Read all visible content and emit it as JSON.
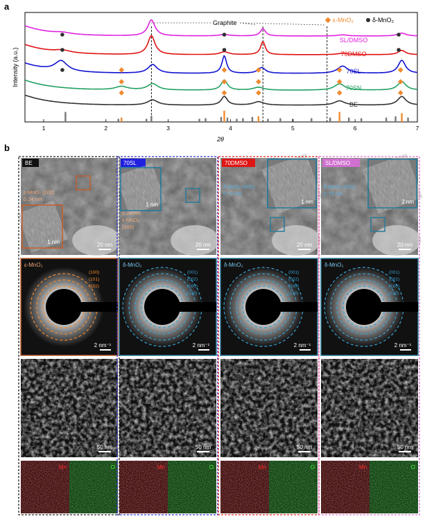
{
  "panel_a": {
    "label": "a",
    "legend": {
      "eps": "ε-MnO₂",
      "delta": "δ-MnO₂"
    },
    "graphite_label": "Graphite",
    "colors": {
      "SL_DMSO": "#e020e0",
      "70DMSO": "#e01010",
      "70SL": "#1010d0",
      "70SN": "#20a060",
      "BE": "#303030",
      "eps_marker": "#f08a30",
      "delta_marker": "#303030"
    }
  },
  "chart_data": {
    "type": "line",
    "xlabel": "2θ",
    "ylabel": "Intensity (a.u.)",
    "xlim": [
      0.7,
      7
    ],
    "x_ticks": [
      "1",
      "2",
      "3",
      "4",
      "5",
      "6",
      "7"
    ],
    "series": [
      {
        "name": "SL/DMSO",
        "offset": 4.0,
        "peaks": [
          [
            1.3,
            0.05,
            0.15
          ],
          [
            2.73,
            0.55,
            0.07
          ],
          [
            3.9,
            0.05,
            0.1
          ],
          [
            4.52,
            0.25,
            0.05
          ],
          [
            5.8,
            0.04,
            0.1
          ],
          [
            6.75,
            0.1,
            0.08
          ]
        ]
      },
      {
        "name": "70DMSO",
        "offset": 3.0,
        "peaks": [
          [
            1.3,
            0.08,
            0.15
          ],
          [
            2.73,
            0.65,
            0.07
          ],
          [
            3.9,
            0.1,
            0.08
          ],
          [
            4.52,
            0.45,
            0.045
          ],
          [
            5.8,
            0.05,
            0.1
          ],
          [
            6.75,
            0.15,
            0.07
          ]
        ]
      },
      {
        "name": "70SL",
        "offset": 2.0,
        "peaks": [
          [
            1.28,
            0.35,
            0.12
          ],
          [
            2.75,
            0.3,
            0.09
          ],
          [
            3.9,
            0.6,
            0.045
          ],
          [
            4.5,
            0.2,
            0.07
          ],
          [
            5.8,
            0.25,
            0.1
          ],
          [
            6.75,
            0.45,
            0.07
          ]
        ]
      },
      {
        "name": "70SN",
        "offset": 1.1,
        "peaks": [
          [
            2.25,
            0.12,
            0.12
          ],
          [
            2.75,
            0.22,
            0.1
          ],
          [
            3.9,
            0.35,
            0.06
          ],
          [
            4.45,
            0.1,
            0.1
          ],
          [
            5.75,
            0.22,
            0.1
          ],
          [
            6.75,
            0.3,
            0.08
          ]
        ]
      },
      {
        "name": "BE",
        "offset": 0.3,
        "peaks": [
          [
            2.75,
            0.18,
            0.1
          ],
          [
            3.9,
            0.3,
            0.06
          ],
          [
            4.45,
            0.12,
            0.1
          ],
          [
            5.75,
            0.15,
            0.1
          ],
          [
            6.75,
            0.3,
            0.08
          ]
        ]
      }
    ],
    "eps_markers": [
      [
        2.25,
        2
      ],
      [
        3.9,
        2
      ],
      [
        4.45,
        2
      ],
      [
        5.75,
        2
      ],
      [
        6.73,
        2
      ],
      [
        2.25,
        1
      ],
      [
        3.9,
        1
      ],
      [
        4.45,
        1
      ],
      [
        5.75,
        1
      ],
      [
        6.73,
        1
      ],
      [
        2.25,
        0
      ],
      [
        3.9,
        0
      ],
      [
        4.45,
        0
      ],
      [
        5.75,
        0
      ],
      [
        6.73,
        0
      ]
    ],
    "delta_markers": [
      [
        1.3,
        4
      ],
      [
        3.9,
        4
      ],
      [
        6.7,
        4
      ],
      [
        1.3,
        3
      ],
      [
        3.9,
        3
      ],
      [
        6.7,
        3
      ],
      [
        1.3,
        2
      ]
    ],
    "reference_ticks": [
      [
        1.35,
        0.8,
        "gray"
      ],
      [
        2.2,
        0.25,
        "gray"
      ],
      [
        2.25,
        0.35,
        "orange"
      ],
      [
        2.65,
        0.25,
        "gray"
      ],
      [
        2.73,
        0.5,
        "gray"
      ],
      [
        3.5,
        0.25,
        "gray"
      ],
      [
        3.6,
        0.3,
        "gray"
      ],
      [
        3.85,
        0.4,
        "gray"
      ],
      [
        3.9,
        0.9,
        "orange"
      ],
      [
        3.95,
        0.35,
        "gray"
      ],
      [
        4.1,
        0.25,
        "gray"
      ],
      [
        4.2,
        0.3,
        "gray"
      ],
      [
        4.35,
        0.4,
        "gray"
      ],
      [
        4.45,
        0.45,
        "orange"
      ],
      [
        4.6,
        0.25,
        "gray"
      ],
      [
        4.8,
        0.3,
        "gray"
      ],
      [
        5.0,
        0.25,
        "gray"
      ],
      [
        5.3,
        0.3,
        "gray"
      ],
      [
        5.6,
        0.35,
        "gray"
      ],
      [
        5.75,
        0.8,
        "orange"
      ],
      [
        5.9,
        0.35,
        "gray"
      ],
      [
        6.1,
        0.3,
        "gray"
      ],
      [
        6.5,
        0.35,
        "gray"
      ],
      [
        6.65,
        0.45,
        "gray"
      ],
      [
        6.75,
        0.7,
        "orange"
      ],
      [
        6.85,
        0.35,
        "gray"
      ]
    ],
    "dashed_lines": [
      2.73,
      4.52,
      5.55
    ]
  },
  "panel_b": {
    "label": "b",
    "columns": [
      {
        "name": "BE",
        "border": "#202020",
        "tag_bg": "#111111",
        "tag_fg": "#ffffff",
        "row1_labels": [
          "ε-MnO₂ (100)",
          "0.24 nm"
        ],
        "row1_label_color": "#f0a878",
        "inset_scale": "1 nm",
        "main_scale": "20 nm",
        "box_color": "#c06030",
        "saed_label": "ε-MnO₂",
        "saed_frame": "#c06030",
        "rings": [
          "(100)",
          "(101)",
          "(102)"
        ],
        "ring_color": "#f08a30",
        "saed_scale": "2 nm⁻¹",
        "sem_scale": "50 nm"
      },
      {
        "name": "70SL",
        "border": "#3030d0",
        "tag_bg": "#2020e0",
        "tag_fg": "#ffffff",
        "row1_labels": [
          "0.24 nm",
          "ε-MnO₂",
          "(100)"
        ],
        "row1_label_color": "#f0a878",
        "inset_scale": "1 nm",
        "main_scale": "20 nm",
        "box_color": "#2a7a9a",
        "saed_label": "δ-MnO₂",
        "saed_frame": "#2a7a9a",
        "rings": [
          "(001)",
          "(002)",
          "(100)",
          "(110)"
        ],
        "ring_color": "#3aa0d0",
        "saed_scale": "2 nm⁻¹",
        "sem_scale": "50 nm"
      },
      {
        "name": "70DMSO",
        "border": "#e02020",
        "tag_bg": "#e01515",
        "tag_fg": "#ffffff",
        "row1_labels": [
          "δ-MnO₂ (001)",
          "0.72 nm"
        ],
        "row1_label_color": "#5ab0e0",
        "inset_scale": "1 nm",
        "main_scale": "20 nm",
        "box_color": "#2a7a9a",
        "saed_label": "δ-MnO₂",
        "saed_frame": "#2a7a9a",
        "rings": [
          "(001)",
          "(002)",
          "(100)",
          "(110)"
        ],
        "ring_color": "#3aa0d0",
        "saed_scale": "2 nm⁻¹",
        "sem_scale": "50 nm"
      },
      {
        "name": "SL/DMSO",
        "border": "#e070d0",
        "tag_bg": "#d070d0",
        "tag_fg": "#ffffff",
        "row1_labels": [
          "δ-MnO₂ (001)",
          "0.72 nm"
        ],
        "row1_label_color": "#5ab0e0",
        "inset_scale": "2 nm",
        "main_scale": "20 nm",
        "box_color": "#2a7a9a",
        "saed_label": "δ-MnO₂",
        "saed_frame": "#2a7a9a",
        "rings": [
          "(001)",
          "(002)",
          "(100)",
          "(110)"
        ],
        "ring_color": "#3aa0d0",
        "saed_scale": "2 nm⁻¹",
        "sem_scale": "50 nm"
      }
    ],
    "map_labels": {
      "mn": "Mn",
      "o": "O"
    }
  }
}
